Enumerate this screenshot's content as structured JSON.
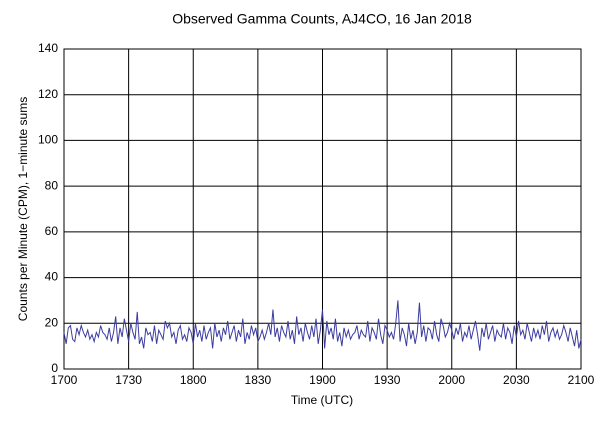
{
  "chart_data": {
    "type": "line",
    "title": "Observed Gamma Counts, AJ4CO, 16 Jan 2018",
    "x_label": "Time (UTC)",
    "y_label": "Counts per Minute (CPM), 1−minute sums",
    "x": [
      0,
      1,
      2,
      3,
      4,
      5,
      6,
      7,
      8,
      9,
      10,
      11,
      12,
      13,
      14,
      15,
      16,
      17,
      18,
      19,
      20,
      21,
      22,
      23,
      24,
      25,
      26,
      27,
      28,
      29,
      30,
      31,
      32,
      33,
      34,
      35,
      36,
      37,
      38,
      39,
      40,
      41,
      42,
      43,
      44,
      45,
      46,
      47,
      48,
      49,
      50,
      51,
      52,
      53,
      54,
      55,
      56,
      57,
      58,
      59,
      60,
      61,
      62,
      63,
      64,
      65,
      66,
      67,
      68,
      69,
      70,
      71,
      72,
      73,
      74,
      75,
      76,
      77,
      78,
      79,
      80,
      81,
      82,
      83,
      84,
      85,
      86,
      87,
      88,
      89,
      90,
      91,
      92,
      93,
      94,
      95,
      96,
      97,
      98,
      99,
      100,
      101,
      102,
      103,
      104,
      105,
      106,
      107,
      108,
      109,
      110,
      111,
      112,
      113,
      114,
      115,
      116,
      117,
      118,
      119,
      120,
      121,
      122,
      123,
      124,
      125,
      126,
      127,
      128,
      129,
      130,
      131,
      132,
      133,
      134,
      135,
      136,
      137,
      138,
      139,
      140,
      141,
      142,
      143,
      144,
      145,
      146,
      147,
      148,
      149,
      150,
      151,
      152,
      153,
      154,
      155,
      156,
      157,
      158,
      159,
      160,
      161,
      162,
      163,
      164,
      165,
      166,
      167,
      168,
      169,
      170,
      171,
      172,
      173,
      174,
      175,
      176,
      177,
      178,
      179,
      180,
      181,
      182,
      183,
      184,
      185,
      186,
      187,
      188,
      189,
      190,
      191,
      192,
      193,
      194,
      195,
      196,
      197,
      198,
      199,
      200,
      201,
      202,
      203,
      204,
      205,
      206,
      207,
      208,
      209,
      210,
      211,
      212,
      213,
      214,
      215,
      216,
      217,
      218,
      219,
      220,
      221,
      222,
      223,
      224,
      225,
      226,
      227,
      228,
      229,
      230,
      231,
      232,
      233,
      234,
      235,
      236,
      237,
      238,
      239,
      240
    ],
    "series": [
      {
        "name": "CPM",
        "color": "#3c3ca0",
        "values": [
          16,
          11,
          18,
          19,
          13,
          12,
          18,
          15,
          19,
          16,
          14,
          17,
          13,
          15,
          12,
          16,
          14,
          19,
          16,
          15,
          13,
          18,
          12,
          16,
          23,
          11,
          18,
          14,
          22,
          17,
          12,
          20,
          16,
          13,
          25,
          11,
          14,
          9,
          18,
          15,
          16,
          12,
          19,
          11,
          17,
          15,
          13,
          21,
          18,
          20,
          14,
          16,
          11,
          17,
          19,
          13,
          15,
          12,
          18,
          16,
          11,
          20,
          14,
          17,
          12,
          19,
          13,
          16,
          18,
          9,
          20,
          14,
          17,
          12,
          18,
          15,
          21,
          13,
          16,
          19,
          12,
          17,
          14,
          22,
          11,
          16,
          13,
          19,
          15,
          18,
          12,
          14,
          17,
          13,
          16,
          20,
          15,
          26,
          14,
          18,
          12,
          19,
          16,
          14,
          21,
          13,
          17,
          11,
          23,
          15,
          18,
          12,
          20,
          16,
          13,
          19,
          14,
          22,
          11,
          17,
          26,
          9,
          21,
          15,
          18,
          13,
          22,
          12,
          16,
          10,
          18,
          14,
          17,
          13,
          15,
          16,
          19,
          13,
          17,
          15,
          14,
          21,
          12,
          18,
          16,
          13,
          22,
          15,
          11,
          19,
          17,
          14,
          16,
          13,
          20,
          30,
          12,
          18,
          15,
          10,
          20,
          13,
          17,
          11,
          16,
          29,
          14,
          19,
          12,
          18,
          17,
          13,
          21,
          15,
          12,
          22,
          19,
          14,
          16,
          20,
          17,
          13,
          18,
          15,
          20,
          12,
          16,
          14,
          19,
          13,
          17,
          21,
          15,
          8,
          18,
          14,
          20,
          13,
          16,
          19,
          12,
          17,
          15,
          14,
          20,
          13,
          18,
          16,
          11,
          19,
          14,
          21,
          15,
          17,
          13,
          20,
          16,
          12,
          18,
          14,
          17,
          13,
          19,
          15,
          21,
          12,
          16,
          18,
          14,
          17,
          13,
          15,
          19,
          16,
          12,
          18,
          14,
          10,
          17,
          9,
          13
        ]
      }
    ],
    "xlim": [
      0,
      240
    ],
    "xticks": [
      {
        "value": 0,
        "label": "1700"
      },
      {
        "value": 30,
        "label": "1730"
      },
      {
        "value": 60,
        "label": "1800"
      },
      {
        "value": 90,
        "label": "1830"
      },
      {
        "value": 120,
        "label": "1900"
      },
      {
        "value": 150,
        "label": "1930"
      },
      {
        "value": 180,
        "label": "2000"
      },
      {
        "value": 210,
        "label": "2030"
      },
      {
        "value": 240,
        "label": "2100"
      }
    ],
    "ylim": [
      0,
      140
    ],
    "yticks": [
      0,
      20,
      40,
      60,
      80,
      100,
      120,
      140
    ],
    "grid": true
  }
}
